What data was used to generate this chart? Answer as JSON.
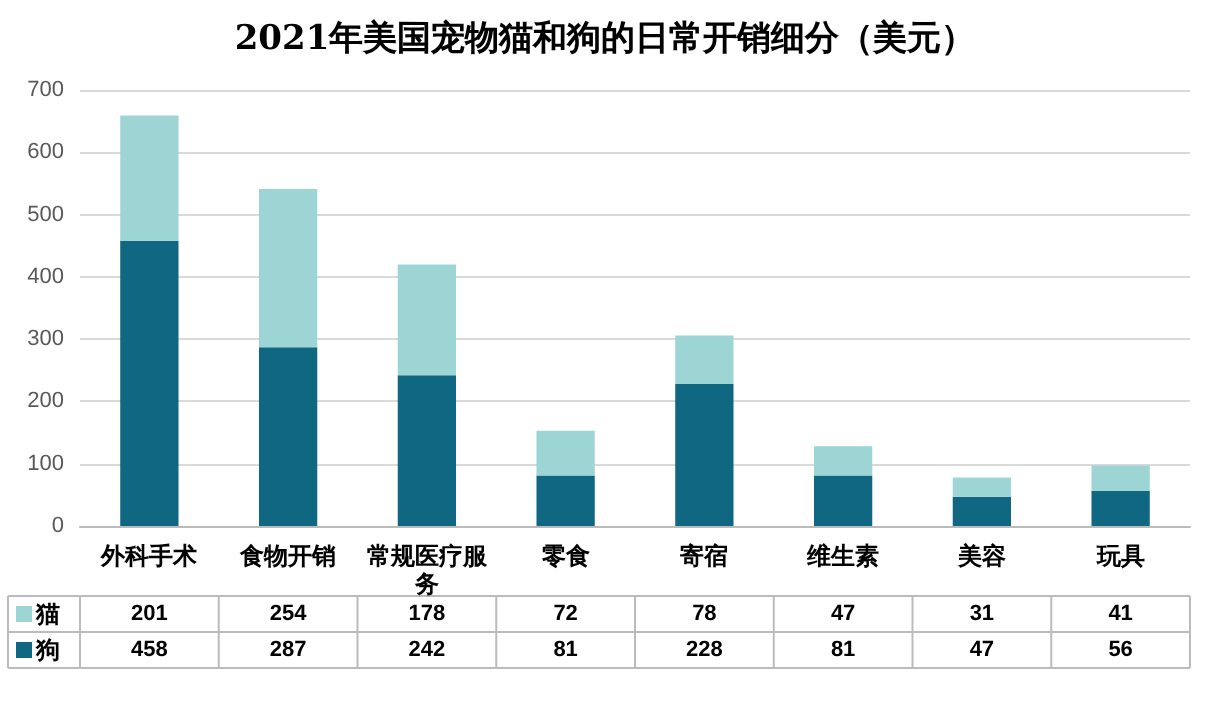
{
  "chart_data": {
    "type": "bar",
    "title": "2021年美国宠物猫和狗的日常开销细分（美元）",
    "categories": [
      "外科手术",
      "食物开销",
      "常规医疗服务",
      "零食",
      "寄宿",
      "维生素",
      "美容",
      "玩具"
    ],
    "stacked": true,
    "series": [
      {
        "name": "狗",
        "color": "#0f6782",
        "values": [
          458,
          287,
          242,
          81,
          228,
          81,
          47,
          56
        ]
      },
      {
        "name": "猫",
        "color": "#9dd5d4",
        "values": [
          201,
          254,
          178,
          72,
          78,
          47,
          31,
          41
        ]
      }
    ],
    "ylim": [
      0,
      700
    ],
    "yticks": [
      0,
      100,
      200,
      300,
      400,
      500,
      600,
      700
    ],
    "grid": "y",
    "legend": "bottom",
    "data_labels": true
  }
}
